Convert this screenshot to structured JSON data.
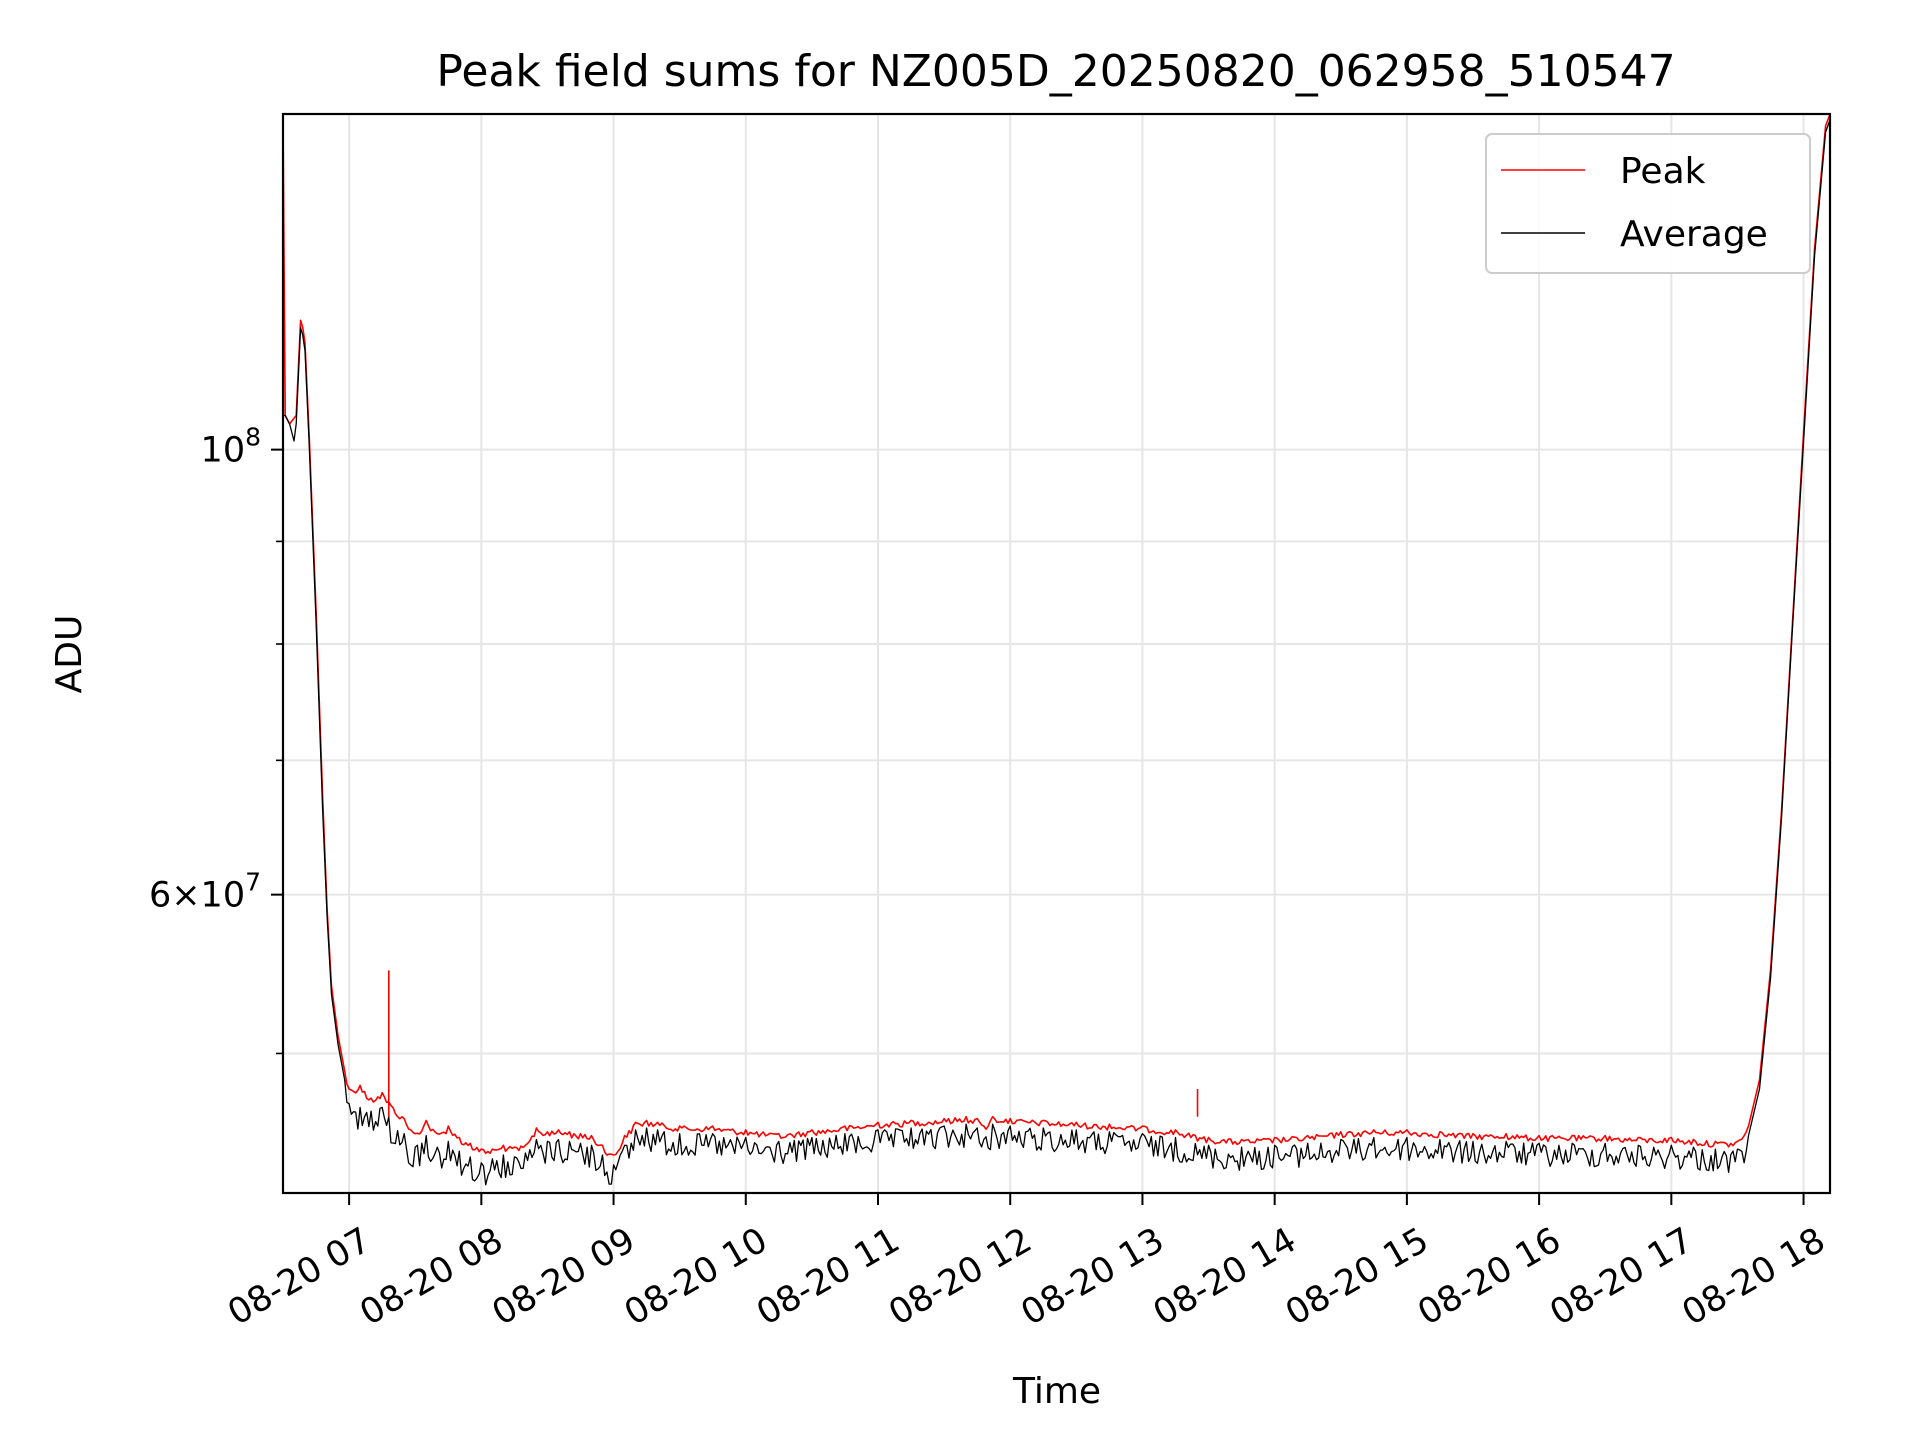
{
  "chart_data": {
    "type": "line",
    "title": "Peak field sums for NZ005D_20250820_062958_510547",
    "xlabel": "Time",
    "ylabel": "ADU",
    "yscale": "log",
    "xlim": [
      "2025-08-20 06:30",
      "2025-08-20 18:12"
    ],
    "ylim": [
      42600000,
      147000000
    ],
    "grid": true,
    "legend_position": "top-right",
    "x_ticks": [
      "08-20 07",
      "08-20 08",
      "08-20 09",
      "08-20 10",
      "08-20 11",
      "08-20 12",
      "08-20 13",
      "08-20 14",
      "08-20 15",
      "08-20 16",
      "08-20 17",
      "08-20 18"
    ],
    "y_ticks": [
      {
        "value": 100000000,
        "base": "10",
        "exp": "8"
      },
      {
        "value": 60000000,
        "base": "6×10",
        "exp": "7"
      }
    ],
    "series": [
      {
        "name": "Peak",
        "color": "#ff0000",
        "x": [
          "2025-08-20 06:30",
          "2025-08-20 06:30",
          "2025-08-20 06:31",
          "2025-08-20 06:33",
          "2025-08-20 06:36",
          "2025-08-20 06:38",
          "2025-08-20 06:39",
          "2025-08-20 06:40",
          "2025-08-20 06:42",
          "2025-08-20 06:45",
          "2025-08-20 06:48",
          "2025-08-20 06:50",
          "2025-08-20 06:52",
          "2025-08-20 06:55",
          "2025-08-20 06:58",
          "2025-08-20 07:00",
          "2025-08-20 07:05",
          "2025-08-20 07:10",
          "2025-08-20 07:15",
          "2025-08-20 07:18",
          "2025-08-20 07:25",
          "2025-08-20 07:30",
          "2025-08-20 07:35",
          "2025-08-20 07:40",
          "2025-08-20 07:45",
          "2025-08-20 07:50",
          "2025-08-20 07:55",
          "2025-08-20 08:00",
          "2025-08-20 08:05",
          "2025-08-20 08:10",
          "2025-08-20 08:15",
          "2025-08-20 08:20",
          "2025-08-20 08:25",
          "2025-08-20 08:30",
          "2025-08-20 08:35",
          "2025-08-20 08:40",
          "2025-08-20 08:45",
          "2025-08-20 08:50",
          "2025-08-20 08:55",
          "2025-08-20 09:00",
          "2025-08-20 09:05",
          "2025-08-20 09:10",
          "2025-08-20 09:15",
          "2025-08-20 09:20",
          "2025-08-20 09:30",
          "2025-08-20 09:45",
          "2025-08-20 10:00",
          "2025-08-20 10:15",
          "2025-08-20 10:30",
          "2025-08-20 10:45",
          "2025-08-20 11:00",
          "2025-08-20 11:15",
          "2025-08-20 11:30",
          "2025-08-20 11:40",
          "2025-08-20 11:45",
          "2025-08-20 11:48",
          "2025-08-20 11:52",
          "2025-08-20 12:00",
          "2025-08-20 12:15",
          "2025-08-20 12:30",
          "2025-08-20 12:45",
          "2025-08-20 13:00",
          "2025-08-20 13:15",
          "2025-08-20 13:30",
          "2025-08-20 13:45",
          "2025-08-20 14:00",
          "2025-08-20 14:15",
          "2025-08-20 14:30",
          "2025-08-20 14:45",
          "2025-08-20 15:00",
          "2025-08-20 15:15",
          "2025-08-20 15:30",
          "2025-08-20 15:45",
          "2025-08-20 16:00",
          "2025-08-20 16:15",
          "2025-08-20 16:30",
          "2025-08-20 16:45",
          "2025-08-20 17:00",
          "2025-08-20 17:10",
          "2025-08-20 17:20",
          "2025-08-20 17:30",
          "2025-08-20 17:35",
          "2025-08-20 17:40",
          "2025-08-20 17:45",
          "2025-08-20 17:50",
          "2025-08-20 17:55",
          "2025-08-20 18:00",
          "2025-08-20 18:05",
          "2025-08-20 18:10",
          "2025-08-20 18:12"
        ],
        "y": [
          104000000,
          146000000,
          104000000,
          103000000,
          104000000,
          116000000,
          115000000,
          113000000,
          101000000,
          83000000,
          67000000,
          59000000,
          54000000,
          51000000,
          49000000,
          48000000,
          48200000,
          47500000,
          47800000,
          47300000,
          46400000,
          45600000,
          46300000,
          45600000,
          46000000,
          45400000,
          45100000,
          44800000,
          44800000,
          45000000,
          44900000,
          45000000,
          45900000,
          45700000,
          45800000,
          45700000,
          45600000,
          45500000,
          45000000,
          44500000,
          45500000,
          46200000,
          46300000,
          46200000,
          46000000,
          46000000,
          45800000,
          45600000,
          45800000,
          46000000,
          46200000,
          46300000,
          46400000,
          46500000,
          46400000,
          46000000,
          46500000,
          46400000,
          46300000,
          46200000,
          46100000,
          46000000,
          45800000,
          45400000,
          45300000,
          45400000,
          45500000,
          45700000,
          45800000,
          45800000,
          45700000,
          45600000,
          45600000,
          45500000,
          45500000,
          45500000,
          45400000,
          45400000,
          45300000,
          45200000,
          45200000,
          46000000,
          48500000,
          55000000,
          66000000,
          82000000,
          102000000,
          126000000,
          145000000,
          147000000
        ]
      },
      {
        "name": "Average",
        "color": "#000000",
        "x": [
          "2025-08-20 06:30",
          "2025-08-20 06:31",
          "2025-08-20 06:33",
          "2025-08-20 06:35",
          "2025-08-20 06:36",
          "2025-08-20 06:38",
          "2025-08-20 06:39",
          "2025-08-20 06:40",
          "2025-08-20 06:42",
          "2025-08-20 06:45",
          "2025-08-20 06:48",
          "2025-08-20 06:50",
          "2025-08-20 06:52",
          "2025-08-20 06:55",
          "2025-08-20 06:58",
          "2025-08-20 07:00",
          "2025-08-20 07:05",
          "2025-08-20 07:10",
          "2025-08-20 07:15",
          "2025-08-20 07:18",
          "2025-08-20 07:25",
          "2025-08-20 07:30",
          "2025-08-20 07:35",
          "2025-08-20 07:40",
          "2025-08-20 07:45",
          "2025-08-20 07:50",
          "2025-08-20 07:55",
          "2025-08-20 08:00",
          "2025-08-20 08:05",
          "2025-08-20 08:10",
          "2025-08-20 08:15",
          "2025-08-20 08:20",
          "2025-08-20 08:25",
          "2025-08-20 08:30",
          "2025-08-20 08:35",
          "2025-08-20 08:40",
          "2025-08-20 08:45",
          "2025-08-20 08:50",
          "2025-08-20 08:55",
          "2025-08-20 09:00",
          "2025-08-20 09:05",
          "2025-08-20 09:10",
          "2025-08-20 09:15",
          "2025-08-20 09:20",
          "2025-08-20 09:30",
          "2025-08-20 09:45",
          "2025-08-20 10:00",
          "2025-08-20 10:15",
          "2025-08-20 10:30",
          "2025-08-20 10:45",
          "2025-08-20 11:00",
          "2025-08-20 11:15",
          "2025-08-20 11:30",
          "2025-08-20 11:40",
          "2025-08-20 11:45",
          "2025-08-20 11:48",
          "2025-08-20 11:52",
          "2025-08-20 12:00",
          "2025-08-20 12:15",
          "2025-08-20 12:30",
          "2025-08-20 12:45",
          "2025-08-20 13:00",
          "2025-08-20 13:15",
          "2025-08-20 13:30",
          "2025-08-20 13:45",
          "2025-08-20 14:00",
          "2025-08-20 14:15",
          "2025-08-20 14:30",
          "2025-08-20 14:45",
          "2025-08-20 15:00",
          "2025-08-20 15:15",
          "2025-08-20 15:30",
          "2025-08-20 15:45",
          "2025-08-20 16:00",
          "2025-08-20 16:15",
          "2025-08-20 16:30",
          "2025-08-20 16:45",
          "2025-08-20 17:00",
          "2025-08-20 17:10",
          "2025-08-20 17:20",
          "2025-08-20 17:30",
          "2025-08-20 17:35",
          "2025-08-20 17:40",
          "2025-08-20 17:45",
          "2025-08-20 17:50",
          "2025-08-20 17:55",
          "2025-08-20 18:00",
          "2025-08-20 18:05",
          "2025-08-20 18:10",
          "2025-08-20 18:12"
        ],
        "y": [
          104000000,
          104000000,
          103000000,
          101000000,
          103000000,
          115000000,
          114000000,
          112000000,
          100000000,
          82000000,
          66000000,
          58500000,
          53500000,
          50500000,
          48500000,
          47200000,
          47000000,
          46800000,
          47000000,
          46500000,
          45600000,
          44900000,
          45500000,
          44900000,
          45200000,
          44700000,
          44400000,
          44100000,
          44300000,
          44500000,
          44400000,
          44600000,
          45300000,
          45200000,
          45300000,
          45200000,
          45100000,
          45000000,
          44500000,
          44000000,
          45000000,
          45800000,
          45900000,
          45800000,
          45600000,
          45600000,
          45400000,
          45200000,
          45400000,
          45600000,
          45800000,
          45900000,
          46000000,
          46100000,
          45900000,
          45300000,
          46100000,
          46000000,
          45900000,
          45800000,
          45700000,
          45600000,
          45400000,
          45000000,
          44900000,
          45000000,
          45100000,
          45300000,
          45400000,
          45400000,
          45300000,
          45200000,
          45200000,
          45100000,
          45100000,
          45100000,
          45000000,
          45000000,
          44900000,
          44800000,
          44800000,
          45500000,
          48000000,
          54500000,
          65500000,
          81500000,
          101000000,
          125000000,
          144000000,
          146000000
        ]
      }
    ]
  }
}
